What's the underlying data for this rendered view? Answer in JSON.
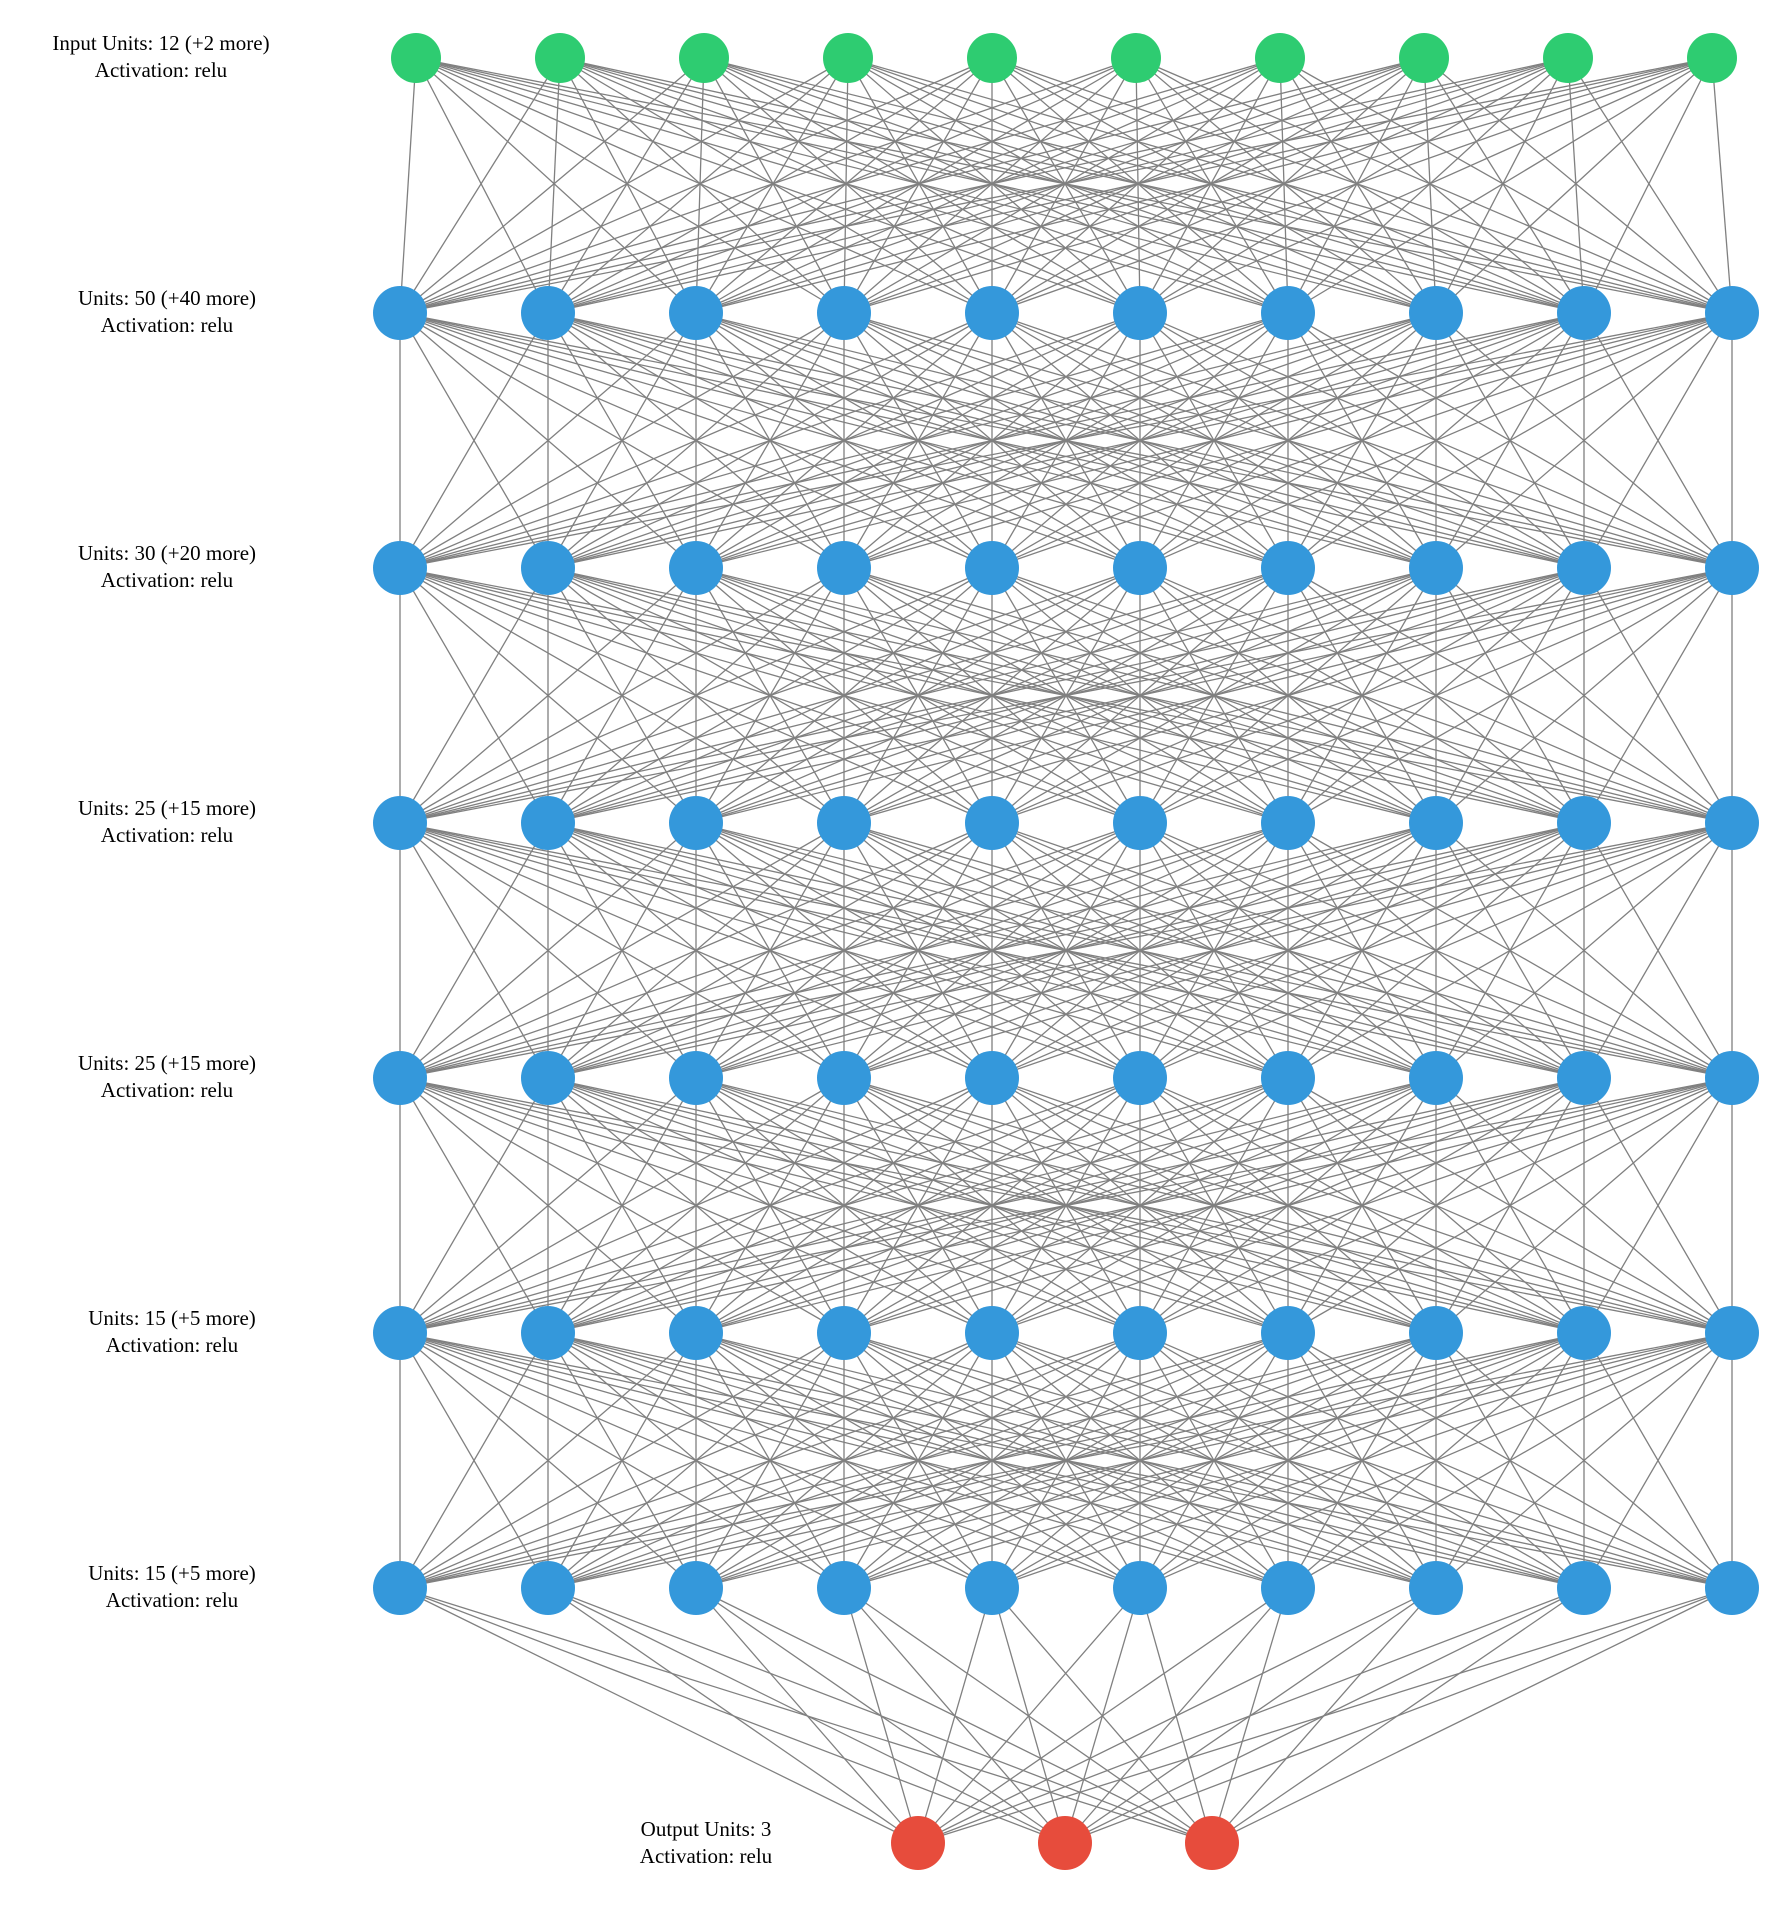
{
  "colors": {
    "input_node": "#2ecc71",
    "hidden_node": "#3498db",
    "output_node": "#e74c3c",
    "edge": "#808080",
    "background": "#ffffff"
  },
  "layers": [
    {
      "units_text": "Input Units: 12 (+2 more)",
      "activation_text": "Activation: relu",
      "visible_nodes": 10,
      "kind": "input"
    },
    {
      "units_text": "Units: 50 (+40 more)",
      "activation_text": "Activation: relu",
      "visible_nodes": 10,
      "kind": "hidden"
    },
    {
      "units_text": "Units: 30 (+20 more)",
      "activation_text": "Activation: relu",
      "visible_nodes": 10,
      "kind": "hidden"
    },
    {
      "units_text": "Units: 25 (+15 more)",
      "activation_text": "Activation: relu",
      "visible_nodes": 10,
      "kind": "hidden"
    },
    {
      "units_text": "Units: 25 (+15 more)",
      "activation_text": "Activation: relu",
      "visible_nodes": 10,
      "kind": "hidden"
    },
    {
      "units_text": "Units: 15 (+5 more)",
      "activation_text": "Activation: relu",
      "visible_nodes": 10,
      "kind": "hidden"
    },
    {
      "units_text": "Units: 15 (+5 more)",
      "activation_text": "Activation: relu",
      "visible_nodes": 10,
      "kind": "hidden"
    },
    {
      "units_text": "Output Units: 3",
      "activation_text": "Activation: relu",
      "visible_nodes": 3,
      "kind": "output"
    }
  ]
}
